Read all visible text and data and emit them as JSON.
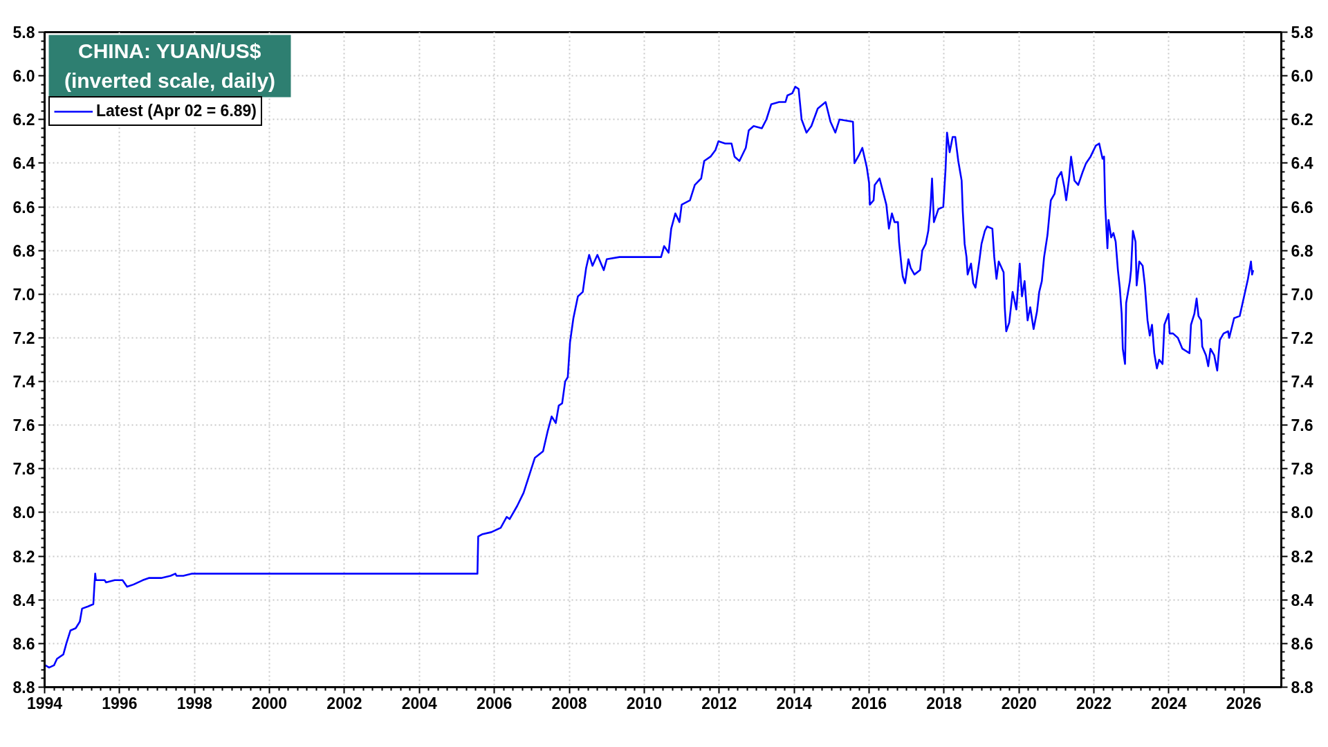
{
  "chart_data": {
    "type": "line",
    "title": "CHINA: YUAN/US$",
    "subtitle": "(inverted scale, daily)",
    "x": [
      1994.02,
      1994.12,
      1994.25,
      1994.33,
      1994.5,
      1994.58,
      1994.69,
      1994.83,
      1994.94,
      1995.0,
      1995.16,
      1995.3,
      1995.33,
      1995.35,
      1995.37,
      1995.6,
      1995.64,
      1995.87,
      1996.08,
      1996.2,
      1996.37,
      1996.62,
      1996.78,
      1997.11,
      1997.36,
      1997.49,
      1997.52,
      1997.7,
      1997.94,
      2005.55,
      2005.57,
      2005.67,
      2005.92,
      2006.17,
      2006.33,
      2006.41,
      2006.61,
      2006.78,
      2006.95,
      2007.08,
      2007.3,
      2007.42,
      2007.53,
      2007.64,
      2007.72,
      2007.81,
      2007.89,
      2007.96,
      2008.02,
      2008.11,
      2008.23,
      2008.36,
      2008.45,
      2008.53,
      2008.62,
      2008.75,
      2008.92,
      2009.0,
      2009.34,
      2009.51,
      2010.02,
      2010.45,
      2010.53,
      2010.65,
      2010.72,
      2010.83,
      2010.94,
      2011.0,
      2011.22,
      2011.35,
      2011.52,
      2011.6,
      2011.77,
      2011.9,
      2011.98,
      2012.16,
      2012.33,
      2012.41,
      2012.54,
      2012.71,
      2012.79,
      2012.92,
      2013.14,
      2013.26,
      2013.39,
      2013.6,
      2013.77,
      2013.82,
      2013.95,
      2014.03,
      2014.12,
      2014.2,
      2014.33,
      2014.46,
      2014.63,
      2014.84,
      2014.97,
      2015.1,
      2015.21,
      2015.57,
      2015.61,
      2015.74,
      2015.82,
      2015.94,
      2016.0,
      2016.02,
      2016.12,
      2016.15,
      2016.28,
      2016.37,
      2016.46,
      2016.53,
      2016.61,
      2016.68,
      2016.77,
      2016.8,
      2016.87,
      2016.9,
      2016.96,
      2017.05,
      2017.11,
      2017.21,
      2017.36,
      2017.42,
      2017.51,
      2017.58,
      2017.64,
      2017.68,
      2017.73,
      2017.85,
      2017.98,
      2018.04,
      2018.08,
      2018.15,
      2018.23,
      2018.3,
      2018.38,
      2018.47,
      2018.5,
      2018.55,
      2018.6,
      2018.63,
      2018.72,
      2018.78,
      2018.84,
      2018.94,
      2019.0,
      2019.09,
      2019.15,
      2019.29,
      2019.34,
      2019.4,
      2019.46,
      2019.59,
      2019.62,
      2019.66,
      2019.74,
      2019.83,
      2019.93,
      2020.02,
      2020.08,
      2020.15,
      2020.23,
      2020.3,
      2020.39,
      2020.48,
      2020.54,
      2020.61,
      2020.67,
      2020.76,
      2020.82,
      2020.85,
      2020.95,
      2021.02,
      2021.13,
      2021.21,
      2021.26,
      2021.33,
      2021.39,
      2021.48,
      2021.58,
      2021.7,
      2021.79,
      2021.91,
      2022.05,
      2022.14,
      2022.23,
      2022.27,
      2022.3,
      2022.36,
      2022.39,
      2022.46,
      2022.52,
      2022.58,
      2022.64,
      2022.69,
      2022.74,
      2022.77,
      2022.83,
      2022.86,
      2022.96,
      2022.99,
      2023.04,
      2023.11,
      2023.14,
      2023.21,
      2023.3,
      2023.36,
      2023.43,
      2023.49,
      2023.55,
      2023.61,
      2023.68,
      2023.74,
      2023.83,
      2023.88,
      2023.99,
      2024.02,
      2024.11,
      2024.24,
      2024.36,
      2024.55,
      2024.59,
      2024.68,
      2024.74,
      2024.79,
      2024.86,
      2024.89,
      2024.99,
      2025.05,
      2025.11,
      2025.21,
      2025.29,
      2025.36,
      2025.46,
      2025.58,
      2025.61,
      2025.74,
      2025.89,
      2026.02,
      2026.11,
      2026.19,
      2026.22,
      2026.25
    ],
    "series": [
      {
        "name": "Latest (Apr 02 = 6.89)",
        "color": "#0000ff",
        "values": [
          8.7,
          8.71,
          8.7,
          8.67,
          8.65,
          8.6,
          8.54,
          8.53,
          8.5,
          8.44,
          8.43,
          8.42,
          8.33,
          8.28,
          8.31,
          8.31,
          8.32,
          8.31,
          8.31,
          8.34,
          8.33,
          8.31,
          8.3,
          8.3,
          8.29,
          8.28,
          8.29,
          8.29,
          8.28,
          8.28,
          8.11,
          8.1,
          8.09,
          8.07,
          8.02,
          8.03,
          7.97,
          7.91,
          7.82,
          7.75,
          7.72,
          7.63,
          7.56,
          7.59,
          7.51,
          7.5,
          7.4,
          7.38,
          7.22,
          7.11,
          7.01,
          6.99,
          6.88,
          6.82,
          6.87,
          6.82,
          6.89,
          6.84,
          6.83,
          6.83,
          6.83,
          6.83,
          6.78,
          6.81,
          6.7,
          6.63,
          6.67,
          6.59,
          6.57,
          6.5,
          6.47,
          6.39,
          6.37,
          6.34,
          6.3,
          6.31,
          6.31,
          6.37,
          6.39,
          6.33,
          6.25,
          6.23,
          6.24,
          6.2,
          6.13,
          6.12,
          6.12,
          6.09,
          6.08,
          6.05,
          6.06,
          6.2,
          6.26,
          6.23,
          6.15,
          6.12,
          6.21,
          6.26,
          6.2,
          6.21,
          6.4,
          6.36,
          6.33,
          6.42,
          6.49,
          6.59,
          6.57,
          6.5,
          6.47,
          6.53,
          6.59,
          6.7,
          6.63,
          6.67,
          6.67,
          6.76,
          6.88,
          6.92,
          6.95,
          6.84,
          6.88,
          6.91,
          6.89,
          6.8,
          6.77,
          6.71,
          6.6,
          6.47,
          6.67,
          6.61,
          6.6,
          6.43,
          6.26,
          6.35,
          6.28,
          6.28,
          6.39,
          6.48,
          6.62,
          6.77,
          6.83,
          6.91,
          6.86,
          6.95,
          6.97,
          6.85,
          6.77,
          6.71,
          6.69,
          6.7,
          6.83,
          6.93,
          6.85,
          6.9,
          7.06,
          7.17,
          7.13,
          6.99,
          7.07,
          6.86,
          7.01,
          6.94,
          7.12,
          7.06,
          7.16,
          7.08,
          6.99,
          6.94,
          6.83,
          6.73,
          6.62,
          6.57,
          6.54,
          6.47,
          6.44,
          6.51,
          6.57,
          6.48,
          6.37,
          6.48,
          6.5,
          6.44,
          6.4,
          6.37,
          6.32,
          6.31,
          6.38,
          6.37,
          6.59,
          6.79,
          6.66,
          6.74,
          6.72,
          6.76,
          6.89,
          6.97,
          7.09,
          7.25,
          7.32,
          7.04,
          6.94,
          6.89,
          6.71,
          6.76,
          6.96,
          6.85,
          6.87,
          6.96,
          7.12,
          7.19,
          7.14,
          7.27,
          7.34,
          7.3,
          7.32,
          7.14,
          7.09,
          7.18,
          7.18,
          7.2,
          7.25,
          7.27,
          7.14,
          7.09,
          7.02,
          7.1,
          7.12,
          7.24,
          7.28,
          7.33,
          7.25,
          7.28,
          7.35,
          7.21,
          7.18,
          7.17,
          7.2,
          7.11,
          7.1,
          7.0,
          6.93,
          6.85,
          6.91,
          6.89
        ]
      }
    ],
    "xlim": [
      1994,
      2027
    ],
    "xticks": [
      1994,
      1996,
      1998,
      2000,
      2002,
      2004,
      2006,
      2008,
      2010,
      2012,
      2014,
      2016,
      2018,
      2020,
      2022,
      2024,
      2026
    ],
    "ylim": [
      8.8,
      5.8
    ],
    "yticks": [
      5.8,
      {
        "value": 6,
        "label": "6.0"
      },
      6.2,
      6.4,
      6.6,
      6.8,
      {
        "value": 7,
        "label": "7.0"
      },
      7.2,
      7.4,
      7.6,
      7.8,
      {
        "value": 8,
        "label": "8.0"
      },
      8.2,
      8.4,
      8.6,
      8.8
    ],
    "y2lim": [
      8.8,
      5.8
    ],
    "y2ticks": [
      5.8,
      {
        "value": 6,
        "label": "6.0"
      },
      6.2,
      6.4,
      6.6,
      6.8,
      {
        "value": 7,
        "label": "7.0"
      },
      7.2,
      7.4,
      7.6,
      7.8,
      {
        "value": 8,
        "label": "8.0"
      },
      8.2,
      8.4,
      8.6,
      8.8
    ],
    "grid": true,
    "legend": "top left",
    "line_style": "solid"
  }
}
